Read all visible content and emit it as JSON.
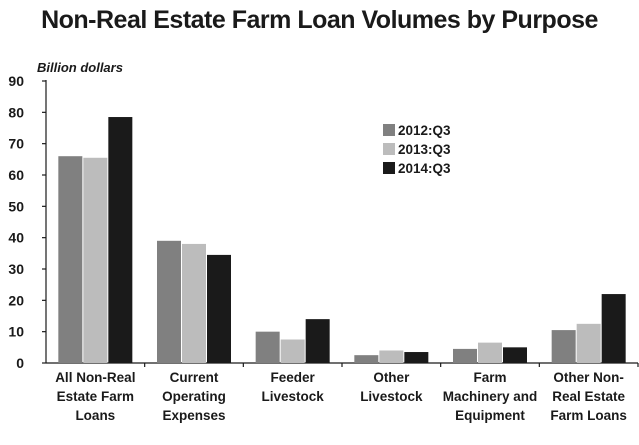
{
  "chart_data": {
    "type": "bar",
    "title": "Non-Real Estate Farm Loan Volumes by Purpose",
    "ylabel": "Billion dollars",
    "xlabel": "",
    "ylim": [
      0,
      90
    ],
    "yticks": [
      0,
      10,
      20,
      30,
      40,
      50,
      60,
      70,
      80,
      90
    ],
    "grid": false,
    "legend_position": "upper-right",
    "categories": [
      [
        "All Non-Real",
        "Estate Farm",
        "Loans"
      ],
      [
        "Current",
        "Operating",
        "Expenses"
      ],
      [
        "Feeder",
        "Livestock"
      ],
      [
        "Other",
        "Livestock"
      ],
      [
        "Farm",
        "Machinery and",
        "Equipment"
      ],
      [
        "Other Non-",
        "Real Estate",
        "Farm Loans"
      ]
    ],
    "series": [
      {
        "name": "2012:Q3",
        "color": "#808080",
        "values": [
          66,
          39,
          10,
          2.5,
          4.5,
          10.5
        ]
      },
      {
        "name": "2013:Q3",
        "color": "#bcbcbc",
        "values": [
          65.5,
          38,
          7.5,
          4,
          6.5,
          12.5
        ]
      },
      {
        "name": "2014:Q3",
        "color": "#1a1a1a",
        "values": [
          78.5,
          34.5,
          14,
          3.5,
          5,
          22
        ]
      }
    ]
  }
}
